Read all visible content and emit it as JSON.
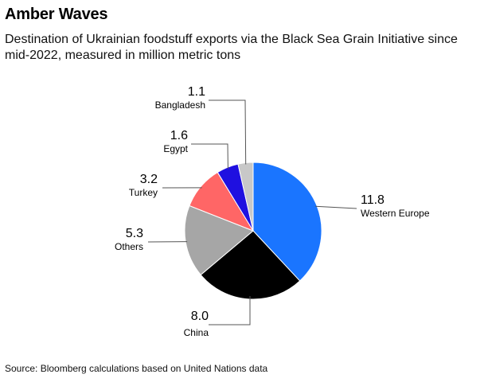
{
  "header": {
    "title": "Amber Waves",
    "subtitle": "Destination of Ukrainian foodstuff exports via the Black Sea Grain Initiative since mid-2022, measured in million metric tons"
  },
  "footer": {
    "source": "Source: Bloomberg calculations based on United Nations data"
  },
  "chart_data": {
    "type": "pie",
    "unit": "million metric tons",
    "categories": [
      "Western Europe",
      "China",
      "Others",
      "Turkey",
      "Egypt",
      "Bangladesh"
    ],
    "values": [
      11.8,
      8.0,
      5.3,
      3.2,
      1.6,
      1.1
    ],
    "value_labels": [
      "11.8",
      "8.0",
      "5.3",
      "3.2",
      "1.6",
      "1.1"
    ],
    "colors": [
      "#1a75ff",
      "#000000",
      "#a6a6a6",
      "#ff6666",
      "#1f10e0",
      "#c8c8c8"
    ],
    "start": "12 o'clock",
    "direction": "clockwise",
    "legend": "none",
    "labels": "callout"
  }
}
